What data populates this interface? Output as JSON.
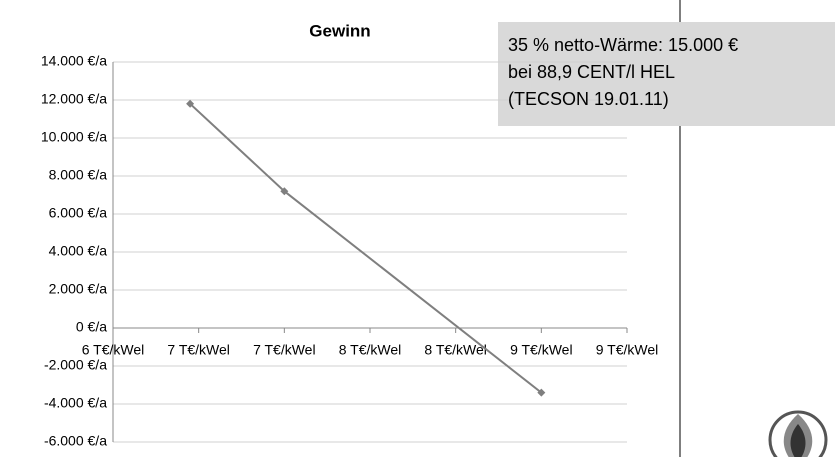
{
  "chart_data": {
    "type": "line",
    "title": "Gewinn",
    "x": [
      6.45,
      7.0,
      8.5
    ],
    "series": [
      {
        "name": "Gewinn",
        "color": "#7f7f7f",
        "values": [
          11800,
          7200,
          -3400
        ]
      }
    ],
    "xlim": [
      6,
      9
    ],
    "xticks": [
      {
        "value": 6,
        "label": "6 T€/kWel"
      },
      {
        "value": 6.5,
        "label": "7 T€/kWel"
      },
      {
        "value": 7,
        "label": "7 T€/kWel"
      },
      {
        "value": 7.5,
        "label": "8 T€/kWel"
      },
      {
        "value": 8,
        "label": "8 T€/kWel"
      },
      {
        "value": 8.5,
        "label": "9 T€/kWel"
      },
      {
        "value": 9,
        "label": "9 T€/kWel"
      }
    ],
    "ylim": [
      -6000,
      14000
    ],
    "yticks": [
      {
        "value": -6000,
        "label": "-6.000 €/a"
      },
      {
        "value": -4000,
        "label": "-4.000 €/a"
      },
      {
        "value": -2000,
        "label": "-2.000 €/a"
      },
      {
        "value": 0,
        "label": "0 €/a"
      },
      {
        "value": 2000,
        "label": "2.000 €/a"
      },
      {
        "value": 4000,
        "label": "4.000 €/a"
      },
      {
        "value": 6000,
        "label": "6.000 €/a"
      },
      {
        "value": 8000,
        "label": "8.000 €/a"
      },
      {
        "value": 10000,
        "label": "10.000 €/a"
      },
      {
        "value": 12000,
        "label": "12.000 €/a"
      },
      {
        "value": 14000,
        "label": "14.000 €/a"
      }
    ],
    "grid": true,
    "annotation": [
      "35 % netto-Wärme: 15.000 €",
      "bei 88,9 CENT/l HEL",
      "(TECSON 19.01.11)"
    ]
  }
}
